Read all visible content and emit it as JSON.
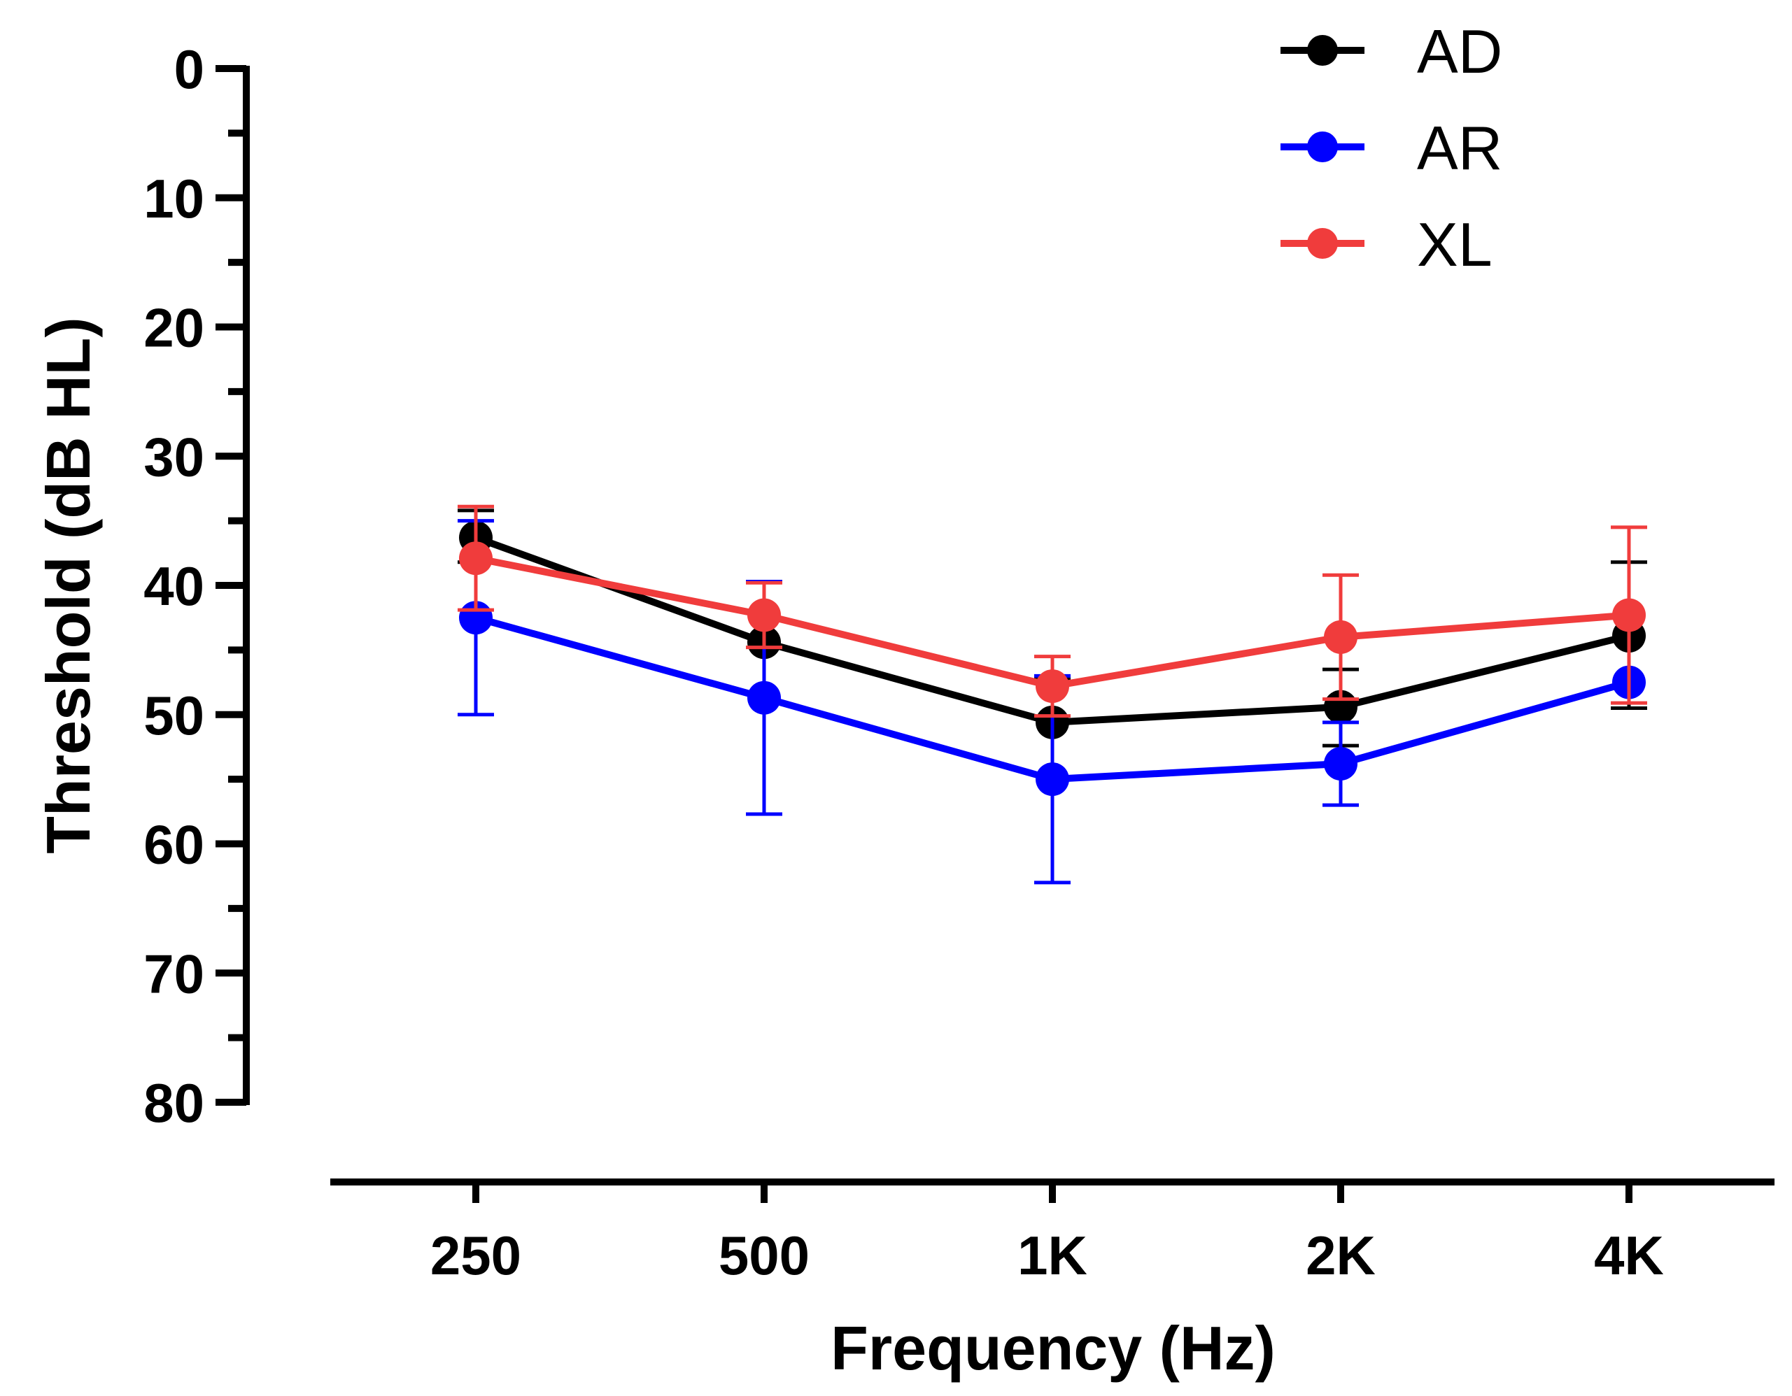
{
  "chart_data": {
    "type": "line",
    "title": "",
    "xlabel": "Frequency (Hz)",
    "ylabel": "Threshold (dB HL)",
    "categories": [
      "250",
      "500",
      "1K",
      "2K",
      "4K"
    ],
    "ylim": [
      0,
      80
    ],
    "y_inverted": true,
    "y_ticks": [
      0,
      10,
      20,
      30,
      40,
      50,
      60,
      70,
      80
    ],
    "grid": false,
    "legend_position": "top-right",
    "series": [
      {
        "name": "AD",
        "color": "#000000",
        "values": [
          36.3,
          44.4,
          50.6,
          49.4,
          43.9
        ],
        "err_upper": [
          2.1,
          0,
          3.4,
          2.9,
          5.7
        ],
        "err_lower": [
          1.9,
          0,
          0,
          3.0,
          5.6
        ]
      },
      {
        "name": "AR",
        "color": "#0000ff",
        "values": [
          42.5,
          48.7,
          55.0,
          53.8,
          47.5
        ],
        "err_upper": [
          7.5,
          9.0,
          8.0,
          3.2,
          0
        ],
        "err_lower": [
          7.5,
          9.0,
          8.0,
          3.2,
          0
        ]
      },
      {
        "name": "XL",
        "color": "#f03c3c",
        "values": [
          37.9,
          42.3,
          47.8,
          44.0,
          42.3
        ],
        "err_upper": [
          4.0,
          2.5,
          2.3,
          4.8,
          6.8
        ],
        "err_lower": [
          4.0,
          2.5,
          2.3,
          4.8,
          6.8
        ]
      }
    ]
  }
}
